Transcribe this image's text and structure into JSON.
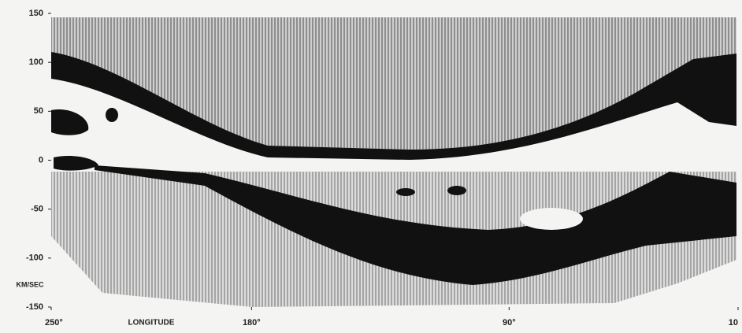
{
  "chart_data": {
    "type": "lv-diagram",
    "xlabel": "LONGITUDE",
    "ylabel": "KM/SEC",
    "xlim": [
      250,
      10
    ],
    "ylim": [
      -150,
      150
    ],
    "xticks": [
      {
        "value": 250,
        "label": "250°"
      },
      {
        "value": 180,
        "label": "180°"
      },
      {
        "value": 90,
        "label": "90°"
      },
      10
    ],
    "yticks": [
      150,
      100,
      50,
      0,
      -50,
      -100,
      -150
    ]
  }
}
